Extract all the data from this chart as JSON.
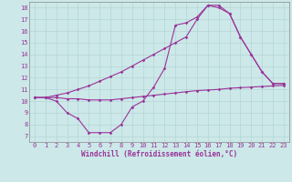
{
  "xlabel": "Windchill (Refroidissement éolien,°C)",
  "bg_color": "#cce8e8",
  "line_color": "#993399",
  "xlim": [
    -0.5,
    23.5
  ],
  "ylim": [
    6.5,
    18.5
  ],
  "yticks": [
    7,
    8,
    9,
    10,
    11,
    12,
    13,
    14,
    15,
    16,
    17,
    18
  ],
  "xticks": [
    0,
    1,
    2,
    3,
    4,
    5,
    6,
    7,
    8,
    9,
    10,
    11,
    12,
    13,
    14,
    15,
    16,
    17,
    18,
    19,
    20,
    21,
    22,
    23
  ],
  "line1_x": [
    0,
    1,
    2,
    3,
    4,
    5,
    6,
    7,
    8,
    9,
    10,
    11,
    12,
    13,
    14,
    15,
    16,
    17,
    18,
    19,
    20,
    21,
    22,
    23
  ],
  "line1_y": [
    10.3,
    10.3,
    10.0,
    9.0,
    8.5,
    7.3,
    7.3,
    7.3,
    8.0,
    9.5,
    10.0,
    11.2,
    12.8,
    16.5,
    16.7,
    17.2,
    18.2,
    18.2,
    17.5,
    15.5,
    14.0,
    12.5,
    11.5,
    11.5
  ],
  "line2_x": [
    0,
    1,
    2,
    3,
    4,
    5,
    6,
    7,
    8,
    9,
    10,
    11,
    12,
    13,
    14,
    15,
    16,
    17,
    18,
    19,
    20,
    21,
    22,
    23
  ],
  "line2_y": [
    10.3,
    10.3,
    10.3,
    10.2,
    10.2,
    10.1,
    10.1,
    10.1,
    10.2,
    10.3,
    10.4,
    10.5,
    10.6,
    10.7,
    10.8,
    10.9,
    10.95,
    11.0,
    11.1,
    11.15,
    11.2,
    11.25,
    11.3,
    11.35
  ],
  "line3_x": [
    0,
    1,
    2,
    3,
    4,
    5,
    6,
    7,
    8,
    9,
    10,
    11,
    12,
    13,
    14,
    15,
    16,
    17,
    18,
    19,
    20,
    21,
    22,
    23
  ],
  "line3_y": [
    10.3,
    10.3,
    10.5,
    10.7,
    11.0,
    11.3,
    11.7,
    12.1,
    12.5,
    13.0,
    13.5,
    14.0,
    14.5,
    15.0,
    15.5,
    17.0,
    18.2,
    18.0,
    17.5,
    15.5,
    14.0,
    12.5,
    11.5,
    11.5
  ]
}
